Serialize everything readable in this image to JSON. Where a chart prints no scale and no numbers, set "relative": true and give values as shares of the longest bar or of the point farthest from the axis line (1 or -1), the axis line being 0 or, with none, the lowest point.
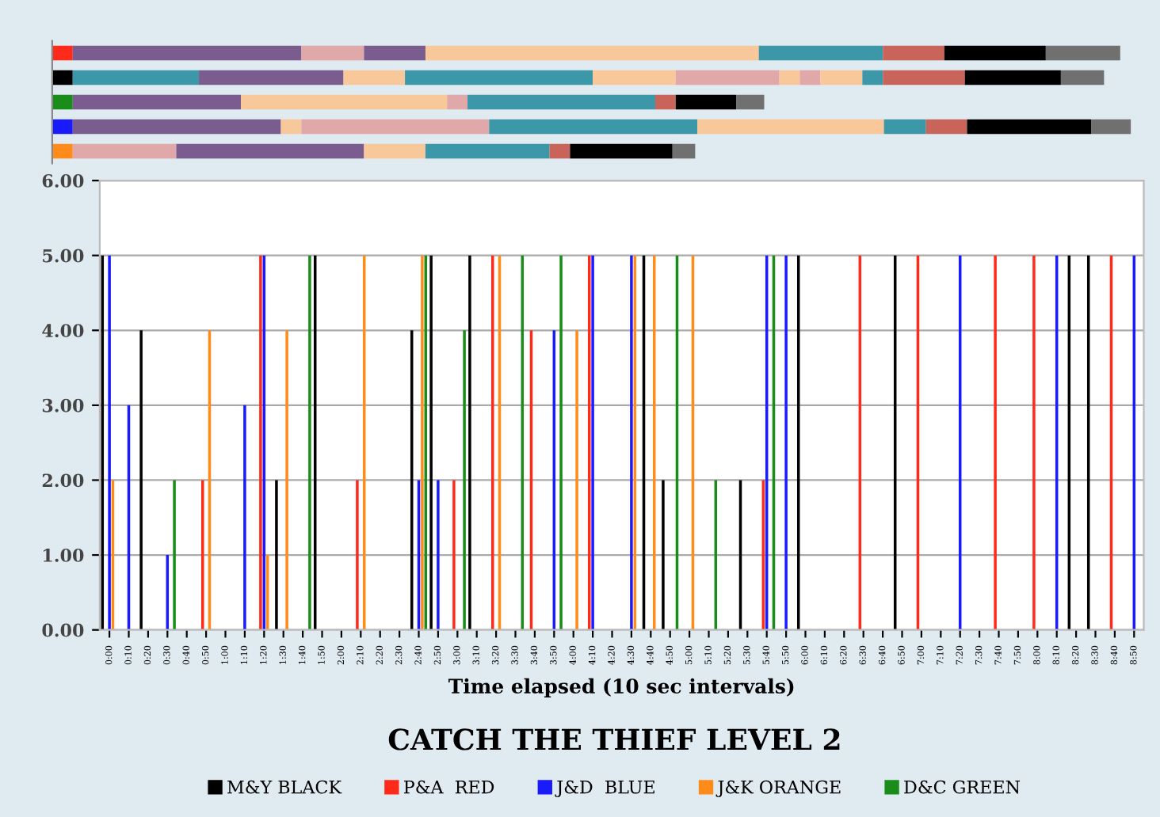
{
  "chart_data": [
    {
      "type": "bar",
      "orientation": "horizontal",
      "stacked": true,
      "relative": true,
      "categories": [
        null,
        null,
        null,
        null,
        null
      ],
      "series": [
        {
          "colors": [
            "#ff2a1a",
            "#000000",
            "#1a8c1a",
            "#1a1aff",
            "#ff8c1a"
          ],
          "values": [
            0.019,
            0.019,
            0.019,
            0.019,
            0.019
          ]
        },
        {
          "colors": [
            "#7a5c8f",
            "#3c97a8",
            "#7a5c8f",
            "#7a5c8f",
            "#e0a8a8"
          ],
          "values": [
            0.212,
            0.117,
            0.156,
            0.193,
            0.096
          ]
        },
        {
          "colors": [
            "#e0a8a8",
            "#7a5c8f",
            "#f8c89a",
            "#f8c89a",
            "#7a5c8f"
          ],
          "values": [
            0.058,
            0.134,
            0.191,
            0.019,
            0.174
          ]
        },
        {
          "colors": [
            "#7a5c8f",
            "#f8c89a",
            "#e0a8a8",
            "#e0a8a8",
            "#f8c89a"
          ],
          "values": [
            0.057,
            0.057,
            0.019,
            0.174,
            0.057
          ]
        },
        {
          "colors": [
            "#f8c89a",
            "#3c97a8",
            "#3c97a8",
            "#3c97a8",
            "#3c97a8"
          ],
          "values": [
            0.309,
            0.174,
            0.174,
            0.193,
            0.115
          ]
        },
        {
          "colors": [
            "#3c97a8",
            "#f8c89a",
            "#c8645a",
            "#f8c89a",
            "#c8645a"
          ],
          "values": [
            0.115,
            0.077,
            0.019,
            0.173,
            0.019
          ]
        },
        {
          "colors": [
            "#c8645a",
            "#e0a8a8",
            "#000000",
            "#3c97a8",
            "#000000"
          ],
          "values": [
            0.057,
            0.096,
            0.056,
            0.039,
            0.095
          ]
        },
        {
          "colors": [
            "#000000",
            "#f8c89a",
            "#707070",
            "#c8645a",
            "#707070"
          ],
          "values": [
            0.094,
            0.019,
            0.026,
            0.038,
            0.021
          ]
        },
        {
          "colors": [
            "#707070",
            "#e0a8a8",
            null,
            "#000000",
            null
          ],
          "values": [
            0.069,
            0.019,
            null,
            0.115,
            null
          ]
        },
        {
          "colors": [
            null,
            "#f8c89a",
            null,
            "#707070",
            null
          ],
          "values": [
            null,
            0.039,
            null,
            0.037,
            null
          ]
        },
        {
          "colors": [
            null,
            "#3c97a8",
            null,
            null,
            null
          ],
          "values": [
            null,
            0.019,
            null,
            null,
            null
          ]
        },
        {
          "colors": [
            null,
            "#c8645a",
            null,
            null,
            null
          ],
          "values": [
            null,
            0.076,
            null,
            null,
            null
          ]
        },
        {
          "colors": [
            null,
            "#000000",
            null,
            null,
            null
          ],
          "values": [
            null,
            0.089,
            null,
            null,
            null
          ]
        },
        {
          "colors": [
            null,
            "#707070",
            null,
            null,
            null
          ],
          "values": [
            null,
            0.04,
            null,
            null,
            null
          ]
        }
      ]
    },
    {
      "type": "bar",
      "title": "CATCH THE THIEF LEVEL 2",
      "xlabel": "Time elapsed (10 sec intervals)",
      "categories": [
        "0:00",
        "0:10",
        "0:20",
        "0:30",
        "0:40",
        "0:50",
        "1:00",
        "1:10",
        "1:20",
        "1:30",
        "1:40",
        "1:50",
        "2:00",
        "2:10",
        "2:20",
        "2:30",
        "2:40",
        "2:50",
        "3:00",
        "3:10",
        "3:20",
        "3:30",
        "3:40",
        "3:50",
        "4:00",
        "4:10",
        "4:20",
        "4:30",
        "4:40",
        "4:50",
        "5:00",
        "5:10",
        "5:20",
        "5:30",
        "5:40",
        "5:50",
        "6:00",
        "6:10",
        "6:20",
        "6:30",
        "6:40",
        "6:50",
        "7:00",
        "7:10",
        "7:20",
        "7:30",
        "7:40",
        "7:50",
        "8:00",
        "8:10",
        "8:20",
        "8:30",
        "8:40",
        "8:50"
      ],
      "ylim": [
        0,
        6
      ],
      "yticks": [
        {
          "value": 0,
          "label": "0.00"
        },
        {
          "value": 1,
          "label": "1.00"
        },
        {
          "value": 2,
          "label": "2.00"
        },
        {
          "value": 3,
          "label": "3.00"
        },
        {
          "value": 4,
          "label": "4.00"
        },
        {
          "value": 5,
          "label": "5.00"
        },
        {
          "value": 6,
          "label": "6.00"
        }
      ],
      "grid": "y",
      "legend": "bottom",
      "series": [
        {
          "name": "M&Y BLACK",
          "color": "#000000",
          "values": [
            5,
            null,
            4,
            null,
            null,
            null,
            null,
            null,
            null,
            2,
            null,
            5,
            null,
            null,
            null,
            null,
            4,
            5,
            null,
            5,
            null,
            null,
            null,
            null,
            null,
            null,
            null,
            null,
            5,
            2,
            null,
            null,
            null,
            2,
            null,
            null,
            5,
            null,
            null,
            null,
            null,
            5,
            null,
            null,
            null,
            null,
            null,
            null,
            null,
            null,
            5,
            5,
            null,
            null
          ]
        },
        {
          "name": "P&A  RED",
          "color": "#ff2a1a",
          "values": [
            null,
            null,
            null,
            null,
            null,
            2,
            null,
            null,
            5,
            null,
            null,
            null,
            null,
            2,
            null,
            null,
            null,
            null,
            2,
            null,
            5,
            null,
            4,
            null,
            null,
            5,
            null,
            null,
            null,
            null,
            null,
            null,
            null,
            null,
            2,
            null,
            null,
            null,
            null,
            5,
            null,
            null,
            5,
            null,
            null,
            null,
            5,
            null,
            5,
            null,
            null,
            null,
            5,
            null
          ]
        },
        {
          "name": "J&D  BLUE",
          "color": "#1a1aff",
          "values": [
            5,
            3,
            null,
            1,
            null,
            null,
            null,
            3,
            5,
            null,
            null,
            null,
            null,
            null,
            null,
            null,
            2,
            2,
            null,
            null,
            null,
            null,
            null,
            4,
            null,
            5,
            null,
            5,
            null,
            null,
            null,
            null,
            null,
            null,
            5,
            5,
            null,
            null,
            null,
            null,
            null,
            null,
            null,
            null,
            5,
            null,
            null,
            null,
            null,
            5,
            null,
            null,
            null,
            5
          ]
        },
        {
          "name": "J&K ORANGE",
          "color": "#ff8c1a",
          "values": [
            2,
            null,
            null,
            null,
            null,
            4,
            null,
            null,
            1,
            4,
            null,
            null,
            null,
            5,
            null,
            null,
            5,
            null,
            null,
            null,
            5,
            null,
            null,
            null,
            4,
            null,
            null,
            5,
            5,
            null,
            5,
            null,
            null,
            null,
            null,
            null,
            null,
            null,
            null,
            null,
            null,
            null,
            null,
            null,
            null,
            null,
            null,
            null,
            null,
            null,
            null,
            null,
            null,
            null
          ]
        },
        {
          "name": "D&C GREEN",
          "color": "#1a8c1a",
          "values": [
            null,
            null,
            null,
            2,
            null,
            null,
            null,
            null,
            null,
            null,
            5,
            null,
            null,
            null,
            null,
            null,
            5,
            null,
            4,
            null,
            null,
            5,
            null,
            5,
            null,
            null,
            null,
            null,
            null,
            5,
            null,
            2,
            null,
            null,
            5,
            null,
            null,
            null,
            null,
            null,
            null,
            null,
            null,
            null,
            null,
            null,
            null,
            null,
            null,
            null,
            null,
            null,
            null,
            null
          ]
        }
      ]
    }
  ]
}
